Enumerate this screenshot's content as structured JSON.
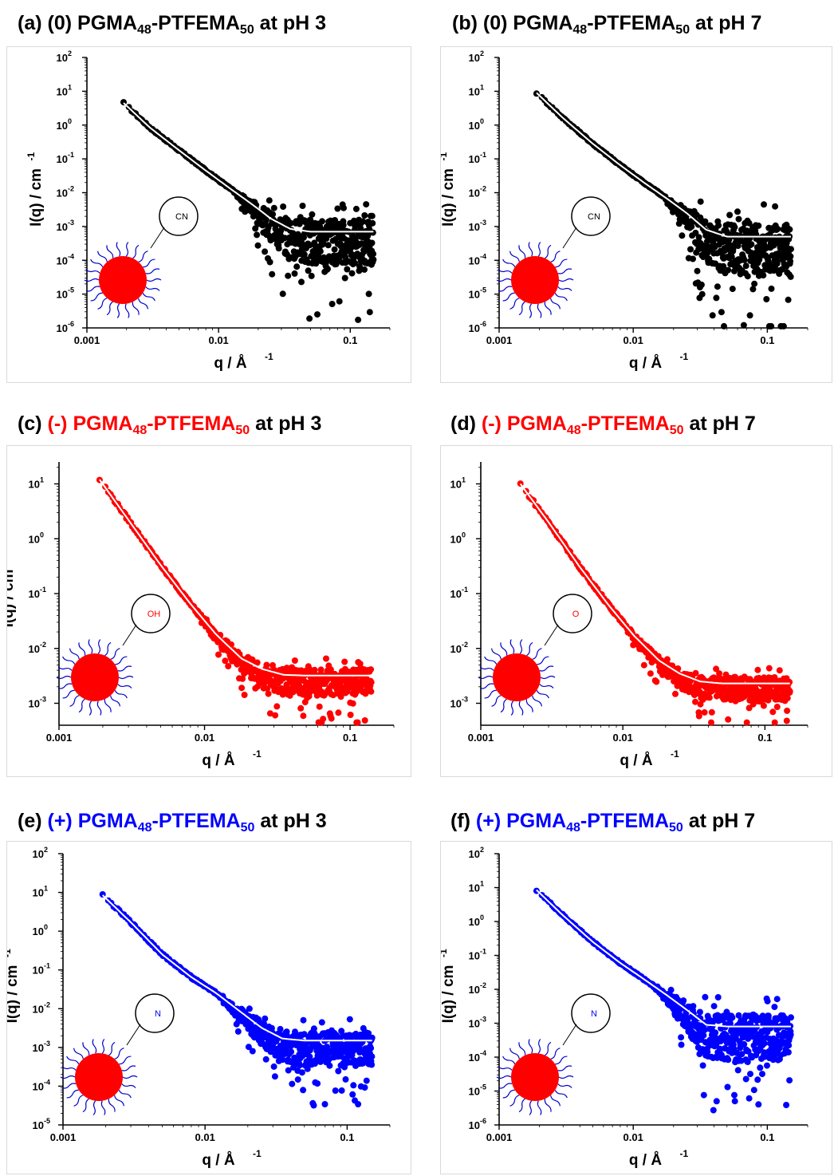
{
  "panels": [
    {
      "id": "a",
      "title": {
        "letter": "(a)",
        "charge": "(0)",
        "gma": "PGMA",
        "gma_sub": "48",
        "dash": "-",
        "tfema": "PTFEMA",
        "tfema_sub": "50",
        "ph": "at pH 3",
        "highlight_color": "#000000"
      },
      "icon_label": "CN"
    },
    {
      "id": "b",
      "title": {
        "letter": "(b)",
        "charge": "(0)",
        "gma": "PGMA",
        "gma_sub": "48",
        "dash": "-",
        "tfema": "PTFEMA",
        "tfema_sub": "50",
        "ph": "at pH 7",
        "highlight_color": "#000000"
      },
      "icon_label": "CN"
    },
    {
      "id": "c",
      "title": {
        "letter": "(c)",
        "charge": "(-)",
        "gma": "PGMA",
        "gma_sub": "48",
        "dash": "-",
        "tfema": "PTFEMA",
        "tfema_sub": "50",
        "ph": "at pH 3",
        "highlight_color": "#ff0000"
      },
      "icon_label": "OH"
    },
    {
      "id": "d",
      "title": {
        "letter": "(d)",
        "charge": "(-)",
        "gma": "PGMA",
        "gma_sub": "48",
        "dash": "-",
        "tfema": "PTFEMA",
        "tfema_sub": "50",
        "ph": "at pH 7",
        "highlight_color": "#ff0000"
      },
      "icon_label": "O"
    },
    {
      "id": "e",
      "title": {
        "letter": "(e)",
        "charge": "(+)",
        "gma": "PGMA",
        "gma_sub": "48",
        "dash": "-",
        "tfema": "PTFEMA",
        "tfema_sub": "50",
        "ph": "at pH 3",
        "highlight_color": "#0000ff"
      },
      "icon_label": "N"
    },
    {
      "id": "f",
      "title": {
        "letter": "(f)",
        "charge": "(+)",
        "gma": "PGMA",
        "gma_sub": "48",
        "dash": "-",
        "tfema": "PTFEMA",
        "tfema_sub": "50",
        "ph": "at pH 7",
        "highlight_color": "#0000ff"
      },
      "icon_label": "N"
    }
  ],
  "chart_data": [
    {
      "panel": "a",
      "type": "scatter",
      "log_x": true,
      "log_y": true,
      "xlabel": "q / Å",
      "xlabel_sup": "-1",
      "ylabel": "I(q) / cm",
      "ylabel_sup": "-1",
      "xlim": [
        0.001,
        0.2
      ],
      "ylim_exp": [
        -6,
        2
      ],
      "x_ticks": [
        "0.001",
        "0.01",
        "0.1"
      ],
      "y_tick_exponents": [
        -6,
        -5,
        -4,
        -3,
        -2,
        -1,
        0,
        1,
        2
      ],
      "color": "#000000",
      "fit_points": [
        [
          0.0019,
          4.5
        ],
        [
          0.003,
          0.85
        ],
        [
          0.005,
          0.18
        ],
        [
          0.008,
          0.045
        ],
        [
          0.012,
          0.014
        ],
        [
          0.018,
          0.0045
        ],
        [
          0.025,
          0.0017
        ],
        [
          0.035,
          0.00085
        ],
        [
          0.05,
          0.0007
        ],
        [
          0.15,
          0.0007
        ]
      ],
      "q_start": 0.0019,
      "q_end": 0.15,
      "plateau": 0.0007,
      "scatter_decades": 2.2
    },
    {
      "panel": "b",
      "type": "scatter",
      "log_x": true,
      "log_y": true,
      "xlabel": "q / Å",
      "xlabel_sup": "-1",
      "ylabel": "I(q) / cm",
      "ylabel_sup": "-1",
      "xlim": [
        0.001,
        0.2
      ],
      "ylim_exp": [
        -6,
        2
      ],
      "x_ticks": [
        "0.001",
        "0.01",
        "0.1"
      ],
      "y_tick_exponents": [
        -6,
        -5,
        -4,
        -3,
        -2,
        -1,
        0,
        1,
        2
      ],
      "color": "#000000",
      "fit_points": [
        [
          0.0019,
          9.0
        ],
        [
          0.003,
          1.6
        ],
        [
          0.005,
          0.28
        ],
        [
          0.008,
          0.065
        ],
        [
          0.012,
          0.02
        ],
        [
          0.018,
          0.0065
        ],
        [
          0.025,
          0.0025
        ],
        [
          0.035,
          0.0008
        ],
        [
          0.05,
          0.0005
        ],
        [
          0.15,
          0.0005
        ]
      ],
      "q_start": 0.0019,
      "q_end": 0.15,
      "plateau": 0.0005,
      "scatter_decades": 2.6
    },
    {
      "panel": "c",
      "type": "scatter",
      "log_x": true,
      "log_y": true,
      "xlabel": "q / Å",
      "xlabel_sup": "-1",
      "ylabel": "I(q) / cm",
      "ylabel_sup": "-1",
      "xlim": [
        0.001,
        0.2
      ],
      "ylim_exp": [
        -3.4,
        1.4
      ],
      "x_ticks": [
        "0.001",
        "0.01",
        "0.1"
      ],
      "y_tick_exponents": [
        -3,
        -2,
        -1,
        0,
        1
      ],
      "color": "#ff0000",
      "fit_points": [
        [
          0.0019,
          12.0
        ],
        [
          0.003,
          2.2
        ],
        [
          0.005,
          0.33
        ],
        [
          0.008,
          0.065
        ],
        [
          0.012,
          0.018
        ],
        [
          0.018,
          0.0065
        ],
        [
          0.025,
          0.0042
        ],
        [
          0.035,
          0.0033
        ],
        [
          0.05,
          0.0032
        ],
        [
          0.14,
          0.0032
        ]
      ],
      "q_start": 0.0019,
      "q_end": 0.14,
      "plateau": 0.0032,
      "scatter_decades": 0.8
    },
    {
      "panel": "d",
      "type": "scatter",
      "log_x": true,
      "log_y": true,
      "xlabel": "q / Å",
      "xlabel_sup": "-1",
      "ylabel": "I(q) / cm",
      "ylabel_sup": "-1",
      "xlim": [
        0.001,
        0.2
      ],
      "ylim_exp": [
        -3.4,
        1.4
      ],
      "x_ticks": [
        "0.001",
        "0.01",
        "0.1"
      ],
      "y_tick_exponents": [
        -3,
        -2,
        -1,
        0,
        1
      ],
      "color": "#ff0000",
      "fit_points": [
        [
          0.0019,
          10.0
        ],
        [
          0.003,
          2.0
        ],
        [
          0.005,
          0.3
        ],
        [
          0.008,
          0.06
        ],
        [
          0.012,
          0.017
        ],
        [
          0.018,
          0.006
        ],
        [
          0.025,
          0.0035
        ],
        [
          0.035,
          0.0025
        ],
        [
          0.05,
          0.0023
        ],
        [
          0.15,
          0.0023
        ]
      ],
      "q_start": 0.0019,
      "q_end": 0.15,
      "plateau": 0.0023,
      "scatter_decades": 0.7
    },
    {
      "panel": "e",
      "type": "scatter",
      "log_x": true,
      "log_y": true,
      "xlabel": "q / Å",
      "xlabel_sup": "-1",
      "ylabel": "I(q) / cm",
      "ylabel_sup": "-1",
      "xlim": [
        0.001,
        0.2
      ],
      "ylim_exp": [
        -5,
        2
      ],
      "x_ticks": [
        "0.001",
        "0.01",
        "0.1"
      ],
      "y_tick_exponents": [
        -5,
        -4,
        -3,
        -2,
        -1,
        0,
        1,
        2
      ],
      "color": "#0000ff",
      "fit_points": [
        [
          0.0019,
          8.5
        ],
        [
          0.003,
          1.7
        ],
        [
          0.005,
          0.25
        ],
        [
          0.008,
          0.065
        ],
        [
          0.012,
          0.025
        ],
        [
          0.018,
          0.008
        ],
        [
          0.025,
          0.0032
        ],
        [
          0.035,
          0.0017
        ],
        [
          0.05,
          0.0015
        ],
        [
          0.15,
          0.0015
        ]
      ],
      "q_start": 0.0019,
      "q_end": 0.15,
      "plateau": 0.0015,
      "scatter_decades": 1.4
    },
    {
      "panel": "f",
      "type": "scatter",
      "log_x": true,
      "log_y": true,
      "xlabel": "q / Å",
      "xlabel_sup": "-1",
      "ylabel": "I(q) / cm",
      "ylabel_sup": "-1",
      "xlim": [
        0.001,
        0.2
      ],
      "ylim_exp": [
        -6,
        2
      ],
      "x_ticks": [
        "0.001",
        "0.01",
        "0.1"
      ],
      "y_tick_exponents": [
        -6,
        -5,
        -4,
        -3,
        -2,
        -1,
        0,
        1,
        2
      ],
      "color": "#0000ff",
      "fit_points": [
        [
          0.0019,
          8.5
        ],
        [
          0.003,
          1.5
        ],
        [
          0.005,
          0.25
        ],
        [
          0.008,
          0.06
        ],
        [
          0.012,
          0.02
        ],
        [
          0.018,
          0.0065
        ],
        [
          0.025,
          0.0025
        ],
        [
          0.035,
          0.0009
        ],
        [
          0.05,
          0.0008
        ],
        [
          0.15,
          0.0008
        ]
      ],
      "q_start": 0.0019,
      "q_end": 0.15,
      "plateau": 0.0008,
      "scatter_decades": 2.3
    }
  ]
}
